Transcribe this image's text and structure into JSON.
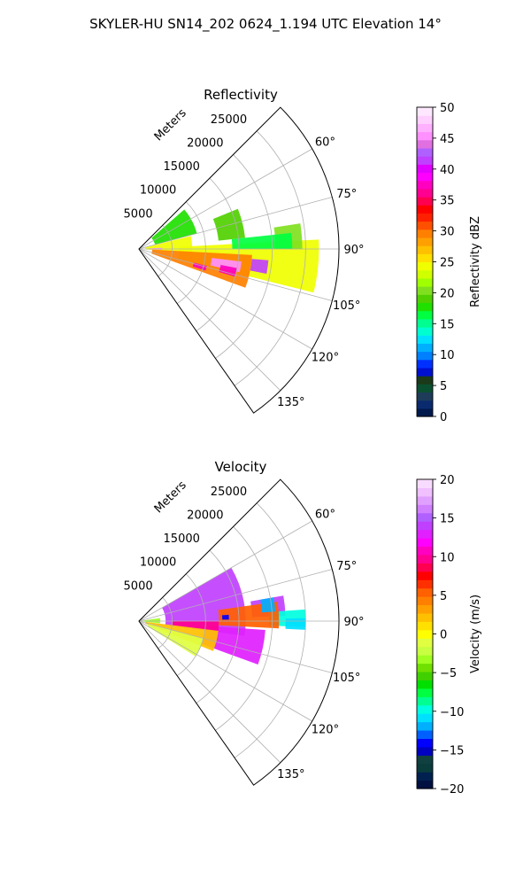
{
  "figure": {
    "suptitle": "SKYLER-HU  SN14_202  0624_1.194 UTC Elevation 14°"
  },
  "chart_data": [
    {
      "type": "heatmap",
      "subtype": "polar-sector",
      "title": "Reflectivity",
      "radial_label": "Meters",
      "radial_ticks": [
        5000,
        10000,
        15000,
        20000,
        25000
      ],
      "radial_tick_labels": [
        "5000",
        "10000",
        "15000",
        "20000",
        "25000"
      ],
      "rlim": [
        0,
        30000
      ],
      "azimuth_range_deg": [
        45,
        145
      ],
      "azimuth_ticks": [
        60,
        75,
        90,
        105,
        120,
        135
      ],
      "azimuth_tick_labels": [
        "60°",
        "75°",
        "90°",
        "105°",
        "120°",
        "135°"
      ],
      "grid": true,
      "colorbar": {
        "label": "Reflectivity dBZ",
        "range": [
          0,
          50
        ],
        "ticks": [
          0,
          5,
          10,
          15,
          20,
          25,
          30,
          35,
          40,
          45,
          50
        ],
        "tick_labels": [
          "0",
          "5",
          "10",
          "15",
          "20",
          "25",
          "30",
          "35",
          "40",
          "45",
          "50"
        ],
        "palette": "NWSRef"
      },
      "echo_regions": [
        {
          "az": [
            49,
            75
          ],
          "r": [
            2500,
            9000
          ],
          "value": 18
        },
        {
          "az": [
            76,
            94
          ],
          "r": [
            1000,
            8000
          ],
          "value": 24
        },
        {
          "az": [
            87,
            104
          ],
          "r": [
            6000,
            27000
          ],
          "value": 24
        },
        {
          "az": [
            68,
            84
          ],
          "r": [
            12000,
            16000
          ],
          "value": 19
        },
        {
          "az": [
            81,
            90
          ],
          "r": [
            20500,
            24500
          ],
          "value": 21
        },
        {
          "az": [
            93,
            110
          ],
          "r": [
            2000,
            17000
          ],
          "value": 30
        },
        {
          "az": [
            84,
            90
          ],
          "r": [
            14000,
            23000
          ],
          "value": 17
        }
      ],
      "echo_cores": [
        {
          "az": [
            87,
            92
          ],
          "r": [
            1500,
            3500
          ],
          "value": 46
        },
        {
          "az": [
            97,
            103
          ],
          "r": [
            11000,
            15500
          ],
          "value": 45
        },
        {
          "az": [
            95,
            101
          ],
          "r": [
            17000,
            19500
          ],
          "value": 42
        },
        {
          "az": [
            101,
            106
          ],
          "r": [
            12500,
            15000
          ],
          "value": 38
        },
        {
          "az": [
            104,
            108
          ],
          "r": [
            8500,
            10500
          ],
          "value": 37
        }
      ]
    },
    {
      "type": "heatmap",
      "subtype": "polar-sector",
      "title": "Velocity",
      "radial_label": "Meters",
      "radial_ticks": [
        5000,
        10000,
        15000,
        20000,
        25000
      ],
      "radial_tick_labels": [
        "5000",
        "10000",
        "15000",
        "20000",
        "25000"
      ],
      "rlim": [
        0,
        30000
      ],
      "azimuth_range_deg": [
        45,
        145
      ],
      "azimuth_ticks": [
        60,
        75,
        90,
        105,
        120,
        135
      ],
      "azimuth_tick_labels": [
        "60°",
        "75°",
        "90°",
        "105°",
        "120°",
        "135°"
      ],
      "grid": true,
      "colorbar": {
        "label": "Velocity (m/s)",
        "range": [
          -20,
          20
        ],
        "ticks": [
          -20,
          -15,
          -10,
          -5,
          0,
          5,
          10,
          15,
          20
        ],
        "tick_labels": [
          "−20",
          "−15",
          "−10",
          "−5",
          "0",
          "5",
          "10",
          "15",
          "20"
        ],
        "palette": "NWSVel"
      },
      "echo_regions": [
        {
          "az": [
            60,
            98
          ],
          "r": [
            4000,
            16000
          ],
          "value": 14
        },
        {
          "az": [
            80,
            88
          ],
          "r": [
            17000,
            22000
          ],
          "value": 14
        },
        {
          "az": [
            86,
            92
          ],
          "r": [
            19500,
            25000
          ],
          "value": -10
        },
        {
          "az": [
            94,
            110
          ],
          "r": [
            10000,
            19000
          ],
          "value": 13
        },
        {
          "az": [
            90,
            97
          ],
          "r": [
            5000,
            12000
          ],
          "value": 10
        },
        {
          "az": [
            97,
            112
          ],
          "r": [
            1000,
            12000
          ],
          "value": 2
        },
        {
          "az": [
            105,
            122
          ],
          "r": [
            1500,
            10000
          ],
          "value": -1
        },
        {
          "az": [
            82,
            96
          ],
          "r": [
            300,
            3200
          ],
          "value": -3
        },
        {
          "az": [
            82,
            93
          ],
          "r": [
            12000,
            21000
          ],
          "value": 5
        }
      ],
      "echo_cores": [
        {
          "az": [
            89,
            93
          ],
          "r": [
            22000,
            25000
          ],
          "value": -11
        },
        {
          "az": [
            80,
            86
          ],
          "r": [
            18500,
            20500
          ],
          "value": -12
        },
        {
          "az": [
            86,
            89
          ],
          "r": [
            12500,
            13500
          ],
          "value": -14
        }
      ]
    }
  ]
}
